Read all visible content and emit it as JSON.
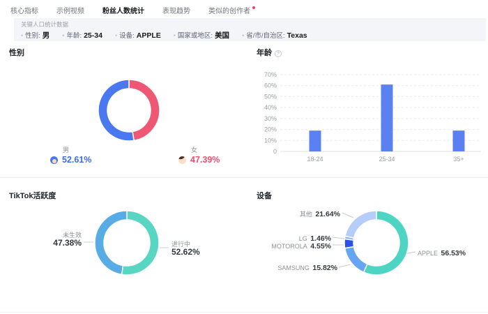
{
  "tabs": {
    "items": [
      {
        "label": "核心指标",
        "active": false,
        "red_dot": false
      },
      {
        "label": "示例视频",
        "active": false,
        "red_dot": false
      },
      {
        "label": "粉丝人数统计",
        "active": true,
        "red_dot": false
      },
      {
        "label": "表现趋势",
        "active": false,
        "red_dot": false
      },
      {
        "label": "类似的创作者",
        "active": false,
        "red_dot": true
      }
    ]
  },
  "filter_bar": {
    "title": "关键人口统计数据",
    "filters": [
      {
        "label": "性别:",
        "value": "男"
      },
      {
        "label": "年龄:",
        "value": "25-34"
      },
      {
        "label": "设备:",
        "value": "APPLE"
      },
      {
        "label": "国家或地区:",
        "value": "美国"
      },
      {
        "label": "省/市/自治区:",
        "value": "Texas"
      }
    ]
  },
  "panels": {
    "gender": {
      "title": "性别",
      "legend": [
        {
          "label": "男",
          "value": "52.61%",
          "color": "#3a6cf0"
        },
        {
          "label": "女",
          "value": "47.39%",
          "color": "#f0506d"
        }
      ]
    },
    "age": {
      "title": "年龄",
      "info_icon": "?"
    },
    "activity": {
      "title": "TikTok活跃度",
      "labels": [
        {
          "name": "未生效",
          "value": "47.38%"
        },
        {
          "name": "进行中",
          "value": "52.62%"
        }
      ]
    },
    "devices": {
      "title": "设备",
      "labels": [
        {
          "name": "其他",
          "value": "21.64%"
        },
        {
          "name": "LG",
          "value": "1.46%"
        },
        {
          "name": "MOTOROLA",
          "value": "4.55%"
        },
        {
          "name": "SAMSUNG",
          "value": "15.82%"
        },
        {
          "name": "APPLE",
          "value": "56.53%"
        }
      ]
    }
  },
  "chart_data": [
    {
      "id": "gender",
      "type": "pie",
      "title": "性别",
      "donut": true,
      "slices": [
        {
          "label": "女",
          "value": 47.39,
          "color": "#ef5874"
        },
        {
          "label": "男",
          "value": 52.61,
          "color": "#4a78f0"
        }
      ],
      "start": "top",
      "direction": "clockwise"
    },
    {
      "id": "age",
      "type": "bar",
      "title": "年龄",
      "categories": [
        "18-24",
        "25-34",
        "35+"
      ],
      "values": [
        19,
        61,
        19
      ],
      "ylim": [
        0,
        70
      ],
      "ytick_step": 10,
      "ytick_suffix": "%",
      "bar_color": "#5b80f2",
      "grid": "dashed",
      "axis_label_color": "#9a9ea6"
    },
    {
      "id": "activity",
      "type": "pie",
      "title": "TikTok活跃度",
      "donut": true,
      "slices": [
        {
          "label": "进行中",
          "value": 52.62,
          "color": "#58d6c3"
        },
        {
          "label": "未生效",
          "value": 47.38,
          "color": "#58ace6"
        }
      ],
      "start": "top",
      "direction": "clockwise"
    },
    {
      "id": "devices",
      "type": "pie",
      "title": "设备",
      "donut": true,
      "slices": [
        {
          "label": "APPLE",
          "value": 56.53,
          "color": "#4dd4c3"
        },
        {
          "label": "SAMSUNG",
          "value": 15.82,
          "color": "#66a5f2"
        },
        {
          "label": "MOTOROLA",
          "value": 4.55,
          "color": "#2b51ea"
        },
        {
          "label": "LG",
          "value": 1.46,
          "color": "#8fb2f5"
        },
        {
          "label": "其他",
          "value": 21.64,
          "color": "#b5cdf8"
        }
      ],
      "start": "top",
      "direction": "clockwise"
    }
  ],
  "colors": {
    "tab_active": "#15171c",
    "red_dot": "#f2405d",
    "filter_bg": "#f4f5f8",
    "connector": "#c9ccd2"
  }
}
